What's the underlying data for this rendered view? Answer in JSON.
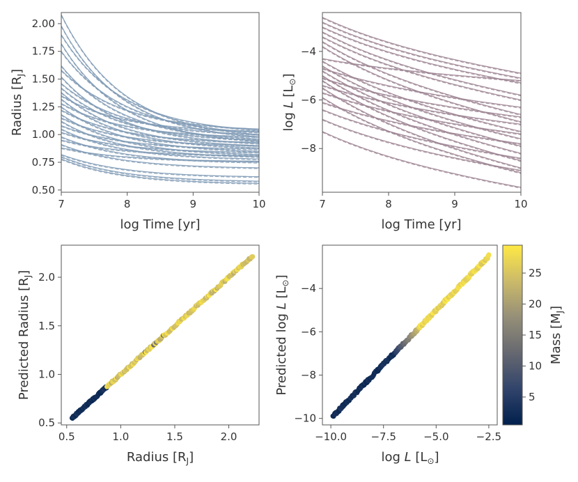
{
  "chart_data": [
    {
      "type": "line",
      "panel": "top-left",
      "xlabel": "log  Time [yr]",
      "ylabel": "Radius [R",
      "ylabel_sub": "J",
      "ylabel_end": "]",
      "xlim": [
        7,
        10
      ],
      "ylim": [
        0.48,
        2.1
      ],
      "xticks": [
        7,
        8,
        9,
        10
      ],
      "xtick_labels": [
        "7",
        "8",
        "9",
        "10"
      ],
      "yticks": [
        0.5,
        0.75,
        1.0,
        1.25,
        1.5,
        1.75,
        2.0
      ],
      "ytick_labels": [
        "0.50",
        "0.75",
        "1.00",
        "1.25",
        "1.50",
        "1.75",
        "2.00"
      ],
      "line_color": "#7f9ab5",
      "series_description": "~40 radius evolution tracks (solid model + dashed prediction)",
      "series": [
        {
          "start": 2.08,
          "end": 1.0
        },
        {
          "start": 1.98,
          "end": 0.98
        },
        {
          "start": 1.9,
          "end": 1.04
        },
        {
          "start": 1.82,
          "end": 0.94
        },
        {
          "start": 1.75,
          "end": 1.02
        },
        {
          "start": 1.62,
          "end": 0.96
        },
        {
          "start": 1.58,
          "end": 1.05
        },
        {
          "start": 1.52,
          "end": 0.92
        },
        {
          "start": 1.46,
          "end": 1.0
        },
        {
          "start": 1.42,
          "end": 0.95
        },
        {
          "start": 1.38,
          "end": 0.9
        },
        {
          "start": 1.35,
          "end": 1.03
        },
        {
          "start": 1.32,
          "end": 0.88
        },
        {
          "start": 1.28,
          "end": 0.98
        },
        {
          "start": 1.25,
          "end": 0.85
        },
        {
          "start": 1.22,
          "end": 0.93
        },
        {
          "start": 1.18,
          "end": 0.82
        },
        {
          "start": 1.15,
          "end": 0.9
        },
        {
          "start": 1.12,
          "end": 0.8
        },
        {
          "start": 1.08,
          "end": 0.87
        },
        {
          "start": 1.05,
          "end": 0.78
        },
        {
          "start": 1.02,
          "end": 0.84
        },
        {
          "start": 0.98,
          "end": 0.75
        },
        {
          "start": 0.95,
          "end": 0.81
        },
        {
          "start": 0.91,
          "end": 0.7
        },
        {
          "start": 0.88,
          "end": 0.76
        },
        {
          "start": 0.82,
          "end": 0.62
        },
        {
          "start": 0.8,
          "end": 0.58
        },
        {
          "start": 0.78,
          "end": 0.56
        }
      ]
    },
    {
      "type": "line",
      "panel": "top-right",
      "xlabel": "log  Time [yr]",
      "ylabel_pre": "log ",
      "ylabel_italic": "L",
      "ylabel_unit": " [L",
      "ylabel_sub": "⊙",
      "ylabel_end": "]",
      "xlim": [
        7,
        10
      ],
      "ylim": [
        -9.8,
        -2.4
      ],
      "xticks": [
        7,
        8,
        9,
        10
      ],
      "xtick_labels": [
        "7",
        "8",
        "9",
        "10"
      ],
      "yticks": [
        -8,
        -6,
        -4
      ],
      "ytick_labels": [
        "−8",
        "−6",
        "−4"
      ],
      "line_color": "#9b8391",
      "series_description": "~40 luminosity evolution tracks (solid model + dashed prediction)",
      "series": [
        {
          "start": -2.6,
          "end": -4.9
        },
        {
          "start": -2.8,
          "end": -5.1
        },
        {
          "start": -3.0,
          "end": -5.3
        },
        {
          "start": -3.2,
          "end": -5.8
        },
        {
          "start": -3.4,
          "end": -6.0
        },
        {
          "start": -3.6,
          "end": -6.6
        },
        {
          "start": -3.8,
          "end": -6.9
        },
        {
          "start": -4.3,
          "end": -5.2
        },
        {
          "start": -4.4,
          "end": -7.3
        },
        {
          "start": -4.6,
          "end": -7.6
        },
        {
          "start": -4.7,
          "end": -6.3
        },
        {
          "start": -4.8,
          "end": -7.9
        },
        {
          "start": -5.0,
          "end": -8.2
        },
        {
          "start": -5.1,
          "end": -6.7
        },
        {
          "start": -5.2,
          "end": -8.5
        },
        {
          "start": -5.4,
          "end": -7.0
        },
        {
          "start": -5.5,
          "end": -8.8
        },
        {
          "start": -5.7,
          "end": -7.4
        },
        {
          "start": -5.9,
          "end": -9.0
        },
        {
          "start": -6.1,
          "end": -7.8
        },
        {
          "start": -6.4,
          "end": -8.4
        },
        {
          "start": -6.8,
          "end": -8.9
        },
        {
          "start": -7.3,
          "end": -9.6
        }
      ]
    },
    {
      "type": "scatter",
      "panel": "bottom-left",
      "xlabel": "Radius [R",
      "xlabel_sub": "J",
      "xlabel_end": "]",
      "ylabel": "Predicted Radius [R",
      "ylabel_sub": "J",
      "ylabel_end": "]",
      "xlim": [
        0.45,
        2.28
      ],
      "ylim": [
        0.48,
        2.33
      ],
      "xticks": [
        0.5,
        1.0,
        1.5,
        2.0
      ],
      "xtick_labels": [
        "0.5",
        "1.0",
        "1.5",
        "2.0"
      ],
      "yticks": [
        0.5,
        1.0,
        1.5,
        2.0
      ],
      "ytick_labels": [
        "0.5",
        "1.0",
        "1.5",
        "2.0"
      ],
      "range": [
        0.55,
        2.22
      ],
      "description": "points along y = x, colored by mass"
    },
    {
      "type": "scatter",
      "panel": "bottom-right",
      "xlabel_pre": "log ",
      "xlabel_italic": "L",
      "xlabel_unit": " [L",
      "xlabel_sub": "⊙",
      "xlabel_end": "]",
      "ylabel_pre": "Predicted log ",
      "ylabel_italic": "L",
      "ylabel_unit": " [L",
      "ylabel_sub": "⊙",
      "ylabel_end": "]",
      "xlim": [
        -10.4,
        -2.1
      ],
      "ylim": [
        -10.3,
        -2.0
      ],
      "xticks": [
        -10,
        -7.5,
        -5,
        -2.5
      ],
      "xtick_labels": [
        "−10.0",
        "−7.5",
        "−5.0",
        "−2.5"
      ],
      "yticks": [
        -10,
        -8,
        -6,
        -4
      ],
      "ytick_labels": [
        "−10",
        "−8",
        "−6",
        "−4"
      ],
      "range": [
        -9.9,
        -2.5
      ],
      "description": "points along y = x, colored by mass"
    }
  ],
  "colorbar": {
    "label": "Mass [M",
    "label_sub": "J",
    "label_end": "]",
    "range": [
      0.5,
      29.5
    ],
    "ticks": [
      5,
      10,
      15,
      20,
      25
    ],
    "tick_labels": [
      "5",
      "10",
      "15",
      "20",
      "25"
    ],
    "colormap": "cividis",
    "stops": [
      "#00204c",
      "#31446b",
      "#666870",
      "#958f78",
      "#cbba69",
      "#ffe945"
    ]
  }
}
